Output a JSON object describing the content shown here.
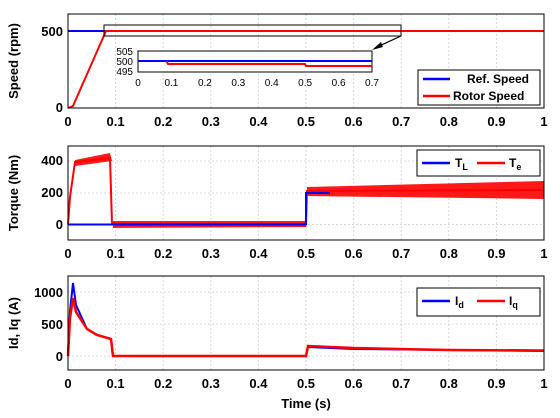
{
  "chart_data": [
    {
      "type": "line",
      "ylabel": "Speed (rpm)",
      "xlim": [
        0,
        1
      ],
      "ylim": [
        0,
        550
      ],
      "x_ticks": [
        "0",
        "0.1",
        "0.2",
        "0.3",
        "0.4",
        "0.5",
        "0.6",
        "0.7",
        "0.8",
        "0.9",
        "1"
      ],
      "y_ticks": [
        "0",
        "500"
      ],
      "grid": true,
      "legend_position": "bottom-right",
      "series": [
        {
          "name": "Ref. Speed",
          "color": "#0000ff",
          "x": [
            0,
            1
          ],
          "y": [
            500,
            500
          ]
        },
        {
          "name": "Rotor Speed",
          "color": "#ff0000",
          "x": [
            0,
            0.01,
            0.08,
            0.09,
            0.5,
            0.51,
            1
          ],
          "y": [
            0,
            5,
            500,
            500,
            500,
            500,
            500
          ]
        }
      ],
      "inset": {
        "xlim": [
          0,
          0.7
        ],
        "ylim": [
          495,
          505
        ],
        "x_ticks": [
          "0",
          "0.1",
          "0.2",
          "0.3",
          "0.4",
          "0.5",
          "0.6",
          "0.7"
        ],
        "y_ticks": [
          "495",
          "500",
          "505"
        ],
        "series": [
          {
            "name": "Ref. Speed",
            "color": "#0000ff",
            "x": [
              0,
              0.7
            ],
            "y": [
              500,
              500
            ]
          },
          {
            "name": "Rotor Speed",
            "color": "#ff0000",
            "x": [
              0.085,
              0.09,
              0.095,
              0.5,
              0.505,
              0.7
            ],
            "y": [
              500,
              499,
              499,
              499,
              498,
              498
            ]
          }
        ]
      }
    },
    {
      "type": "line",
      "ylabel": "Torque (Nm)",
      "xlim": [
        0,
        1
      ],
      "ylim": [
        -70,
        500
      ],
      "x_ticks": [
        "0",
        "0.1",
        "0.2",
        "0.3",
        "0.4",
        "0.5",
        "0.6",
        "0.7",
        "0.8",
        "0.9",
        "1"
      ],
      "y_ticks": [
        "0",
        "200",
        "400"
      ],
      "grid": true,
      "legend_position": "top-right",
      "series": [
        {
          "name": "T_L",
          "color": "#0000ff",
          "x": [
            0,
            0.5,
            0.5,
            1
          ],
          "y": [
            0,
            0,
            200,
            200
          ]
        },
        {
          "name": "T_e",
          "color": "#ff0000",
          "x": [
            0,
            0.005,
            0.015,
            0.09,
            0.095,
            0.5,
            0.505,
            0.6,
            1
          ],
          "y": [
            0,
            180,
            410,
            425,
            5,
            5,
            210,
            215,
            225
          ]
        }
      ]
    },
    {
      "type": "line",
      "ylabel": "Id, Iq (A)",
      "xlabel": "Time (s)",
      "xlim": [
        0,
        1
      ],
      "ylim": [
        -200,
        1300
      ],
      "x_ticks": [
        "0",
        "0.1",
        "0.2",
        "0.3",
        "0.4",
        "0.5",
        "0.6",
        "0.7",
        "0.8",
        "0.9",
        "1"
      ],
      "y_ticks": [
        "0",
        "500",
        "1000"
      ],
      "grid": true,
      "legend_position": "top-right",
      "series": [
        {
          "name": "I_d",
          "color": "#0000ff",
          "x": [
            0,
            0.005,
            0.01,
            0.02,
            0.04,
            0.06,
            0.09,
            0.095,
            0.5,
            0.505,
            0.6,
            0.8,
            1
          ],
          "y": [
            0,
            700,
            1130,
            700,
            420,
            320,
            260,
            0,
            0,
            130,
            115,
            95,
            80
          ]
        },
        {
          "name": "I_q",
          "color": "#ff0000",
          "x": [
            0,
            0.005,
            0.01,
            0.02,
            0.04,
            0.06,
            0.09,
            0.095,
            0.5,
            0.505,
            0.6,
            0.8,
            1
          ],
          "y": [
            0,
            600,
            900,
            680,
            420,
            320,
            260,
            0,
            0,
            145,
            120,
            100,
            85
          ]
        }
      ]
    }
  ]
}
